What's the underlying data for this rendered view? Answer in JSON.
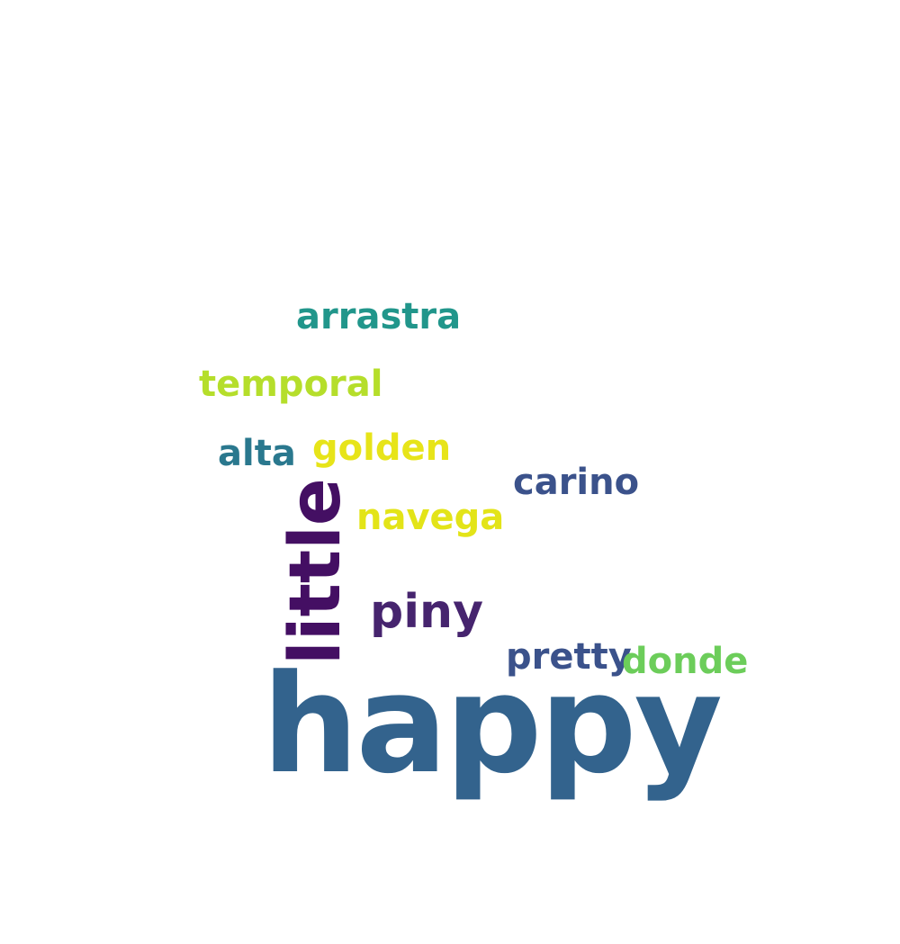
{
  "word_cloud": {
    "background_color": "#ffffff",
    "words": [
      {
        "id": "happy",
        "text": "happy",
        "color": "#33638d"
      },
      {
        "id": "little",
        "text": "little",
        "color": "#440f63"
      },
      {
        "id": "piny",
        "text": "piny",
        "color": "#46246e"
      },
      {
        "id": "carino",
        "text": "carino",
        "color": "#3b528b"
      },
      {
        "id": "navega",
        "text": "navega",
        "color": "#e3e418"
      },
      {
        "id": "arrastra",
        "text": "arrastra",
        "color": "#21968b"
      },
      {
        "id": "temporal",
        "text": "temporal",
        "color": "#b5de2b"
      },
      {
        "id": "alta",
        "text": "alta",
        "color": "#2a788e"
      },
      {
        "id": "golden",
        "text": "golden",
        "color": "#e7e419"
      },
      {
        "id": "pretty",
        "text": "pretty",
        "color": "#3b528b"
      },
      {
        "id": "donde",
        "text": "donde",
        "color": "#6ccd5a"
      }
    ]
  }
}
